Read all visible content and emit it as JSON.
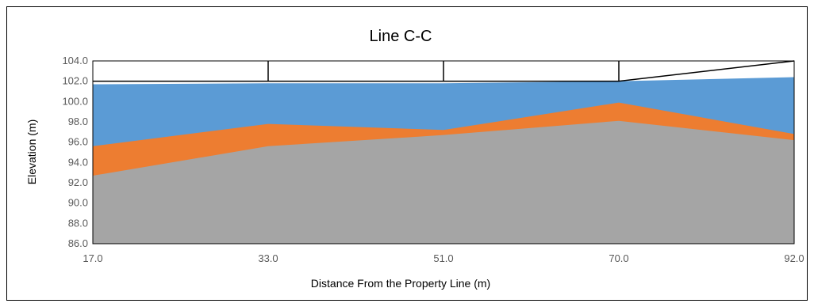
{
  "chart_data": {
    "type": "area",
    "title": "Line C-C",
    "xlabel": "Distance From the Property Line (m)",
    "ylabel": "Elevation (m)",
    "categories": [
      "17.0",
      "33.0",
      "51.0",
      "70.0",
      "92.0"
    ],
    "ylim": [
      86.0,
      104.0
    ],
    "y_ticks": [
      "86.0",
      "88.0",
      "90.0",
      "92.0",
      "94.0",
      "96.0",
      "98.0",
      "100.0",
      "102.0",
      "104.0"
    ],
    "grid": false,
    "legend": "none",
    "series": [
      {
        "values": [
          101.7,
          101.8,
          101.8,
          102.0,
          102.4
        ],
        "color": "#5B9BD5"
      },
      {
        "values": [
          95.6,
          97.8,
          97.2,
          99.9,
          96.8
        ],
        "color": "#ED7D31"
      },
      {
        "values": [
          92.7,
          95.6,
          96.7,
          98.1,
          96.2
        ],
        "color": "#A5A5A5"
      }
    ],
    "reference_line": {
      "values": [
        102.0,
        102.0,
        102.0,
        102.0,
        104.0
      ],
      "color": "#000000"
    }
  }
}
